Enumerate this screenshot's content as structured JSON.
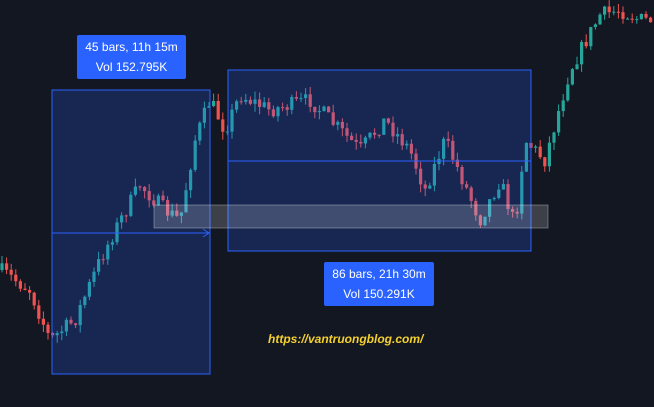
{
  "ranges": [
    {
      "bars": "45 bars, 11h 15m",
      "volume": "Vol 152.795K"
    },
    {
      "bars": "86 bars, 21h 30m",
      "volume": "Vol 150.291K"
    }
  ],
  "watermark": "https://vantruongblog.com/"
}
